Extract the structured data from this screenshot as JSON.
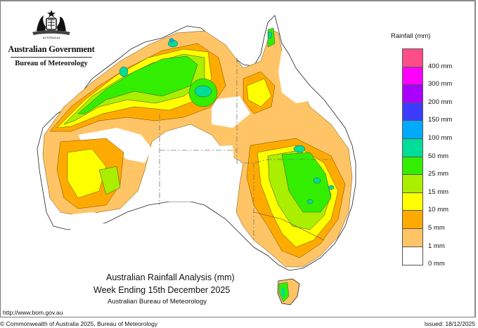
{
  "header": {
    "government": "Australian Government",
    "agency": "Bureau of Meteorology",
    "crest_icon": "coat-of-arms-icon"
  },
  "map": {
    "title": "Australian Rainfall Analysis (mm)",
    "subtitle": "Week Ending 15th December 2025",
    "source": "Australian Bureau of Meteorology",
    "region": "Australia"
  },
  "legend": {
    "title": "Rainfall (mm)",
    "bins": [
      {
        "label": "",
        "color": "#ff4d88"
      },
      {
        "label": "400 mm",
        "color": "#ff00ff"
      },
      {
        "label": "300 mm",
        "color": "#aa00ff"
      },
      {
        "label": "200 mm",
        "color": "#3c3cff"
      },
      {
        "label": "150 mm",
        "color": "#00aaff"
      },
      {
        "label": "100 mm",
        "color": "#00dd99"
      },
      {
        "label": "50 mm",
        "color": "#33ee00"
      },
      {
        "label": "25 mm",
        "color": "#aaee00"
      },
      {
        "label": "15 mm",
        "color": "#ffff00"
      },
      {
        "label": "10 mm",
        "color": "#ffaa00"
      },
      {
        "label": "5 mm",
        "color": "#ffc466"
      },
      {
        "label": "1 mm",
        "color": "#ffffff"
      }
    ],
    "bottom_label": "0 mm"
  },
  "footer": {
    "url": "http://www.bom.gov.au",
    "copyright": "© Commonwealth of Australia 2025, Bureau of Meteorology",
    "issued": "Issued: 18/12/2025"
  }
}
